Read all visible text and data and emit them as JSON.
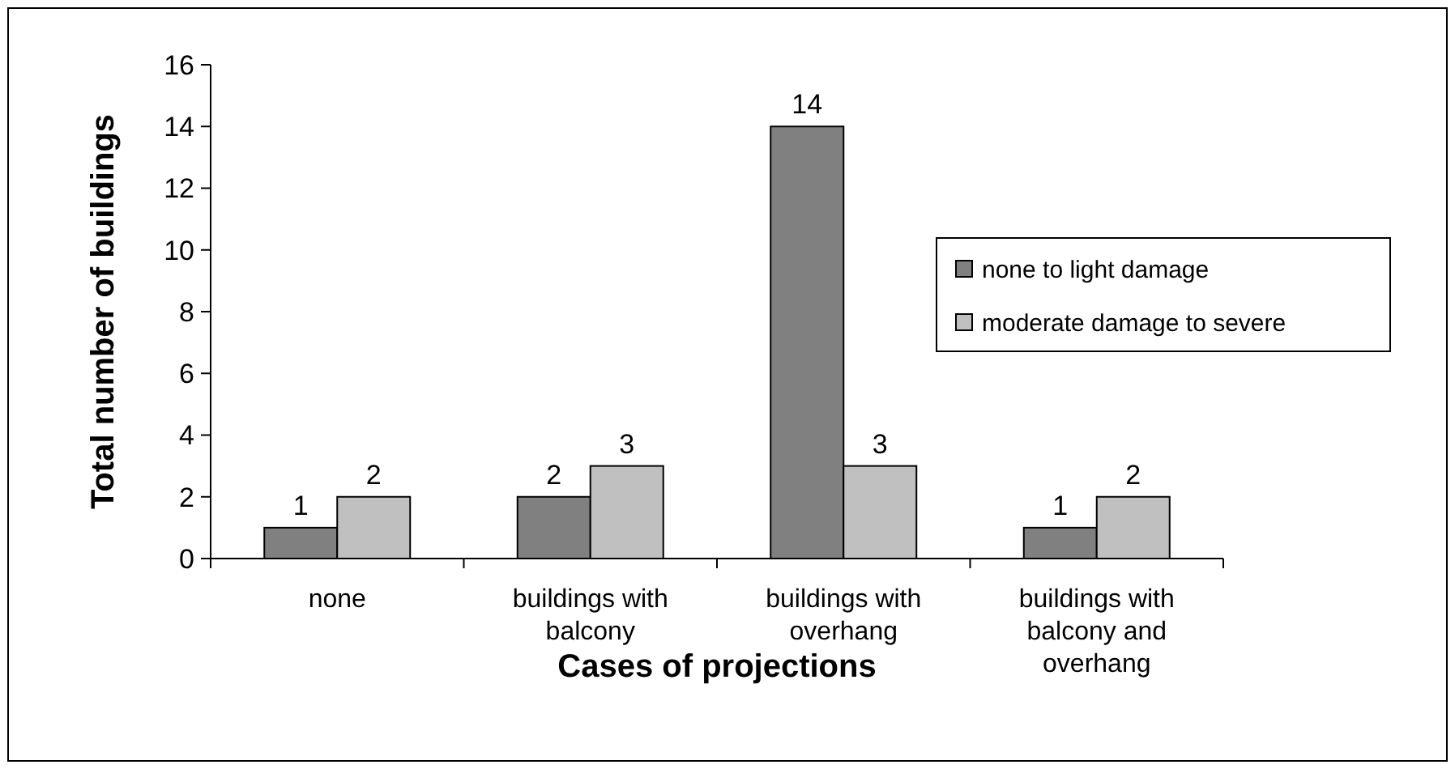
{
  "chart_data": {
    "type": "bar",
    "xlabel": "Cases of projections",
    "ylabel": "Total number of buildings",
    "categories": [
      "none",
      "buildings with balcony",
      "buildings with overhang",
      "buildings with balcony and overhang"
    ],
    "series": [
      {
        "name": "none to light damage",
        "color": "#808080",
        "values": [
          1,
          2,
          14,
          1
        ]
      },
      {
        "name": "moderate damage to severe",
        "color": "#c0c0c0",
        "values": [
          2,
          3,
          3,
          2
        ]
      }
    ],
    "ylim": [
      0,
      16
    ],
    "yticks": [
      0,
      2,
      4,
      6,
      8,
      10,
      12,
      14,
      16
    ],
    "data_labels": true,
    "legend": "right",
    "grid": false
  }
}
